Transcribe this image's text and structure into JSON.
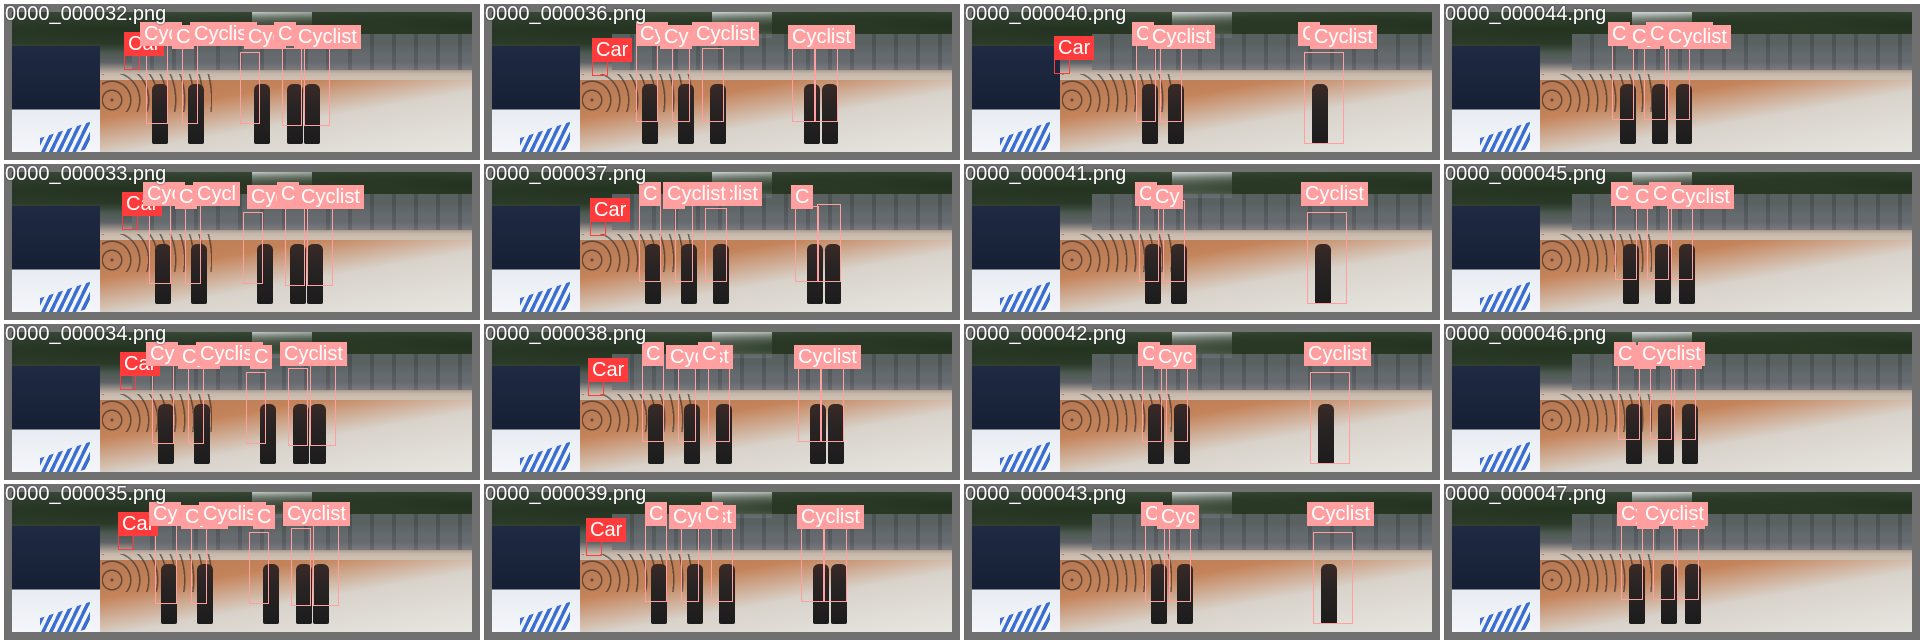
{
  "grid": {
    "rows": 4,
    "cols": 4,
    "tiles": [
      {
        "file": "0000_000032.png",
        "car": "Car",
        "labels": [
          "Cyc",
          "C",
          "Cyclist",
          "Cyc",
          "C",
          "Cyclist"
        ]
      },
      {
        "file": "0000_000036.png",
        "car": "Car",
        "labels": [
          "Cy",
          "Cy",
          "Cyclist",
          "Cyclist"
        ]
      },
      {
        "file": "0000_000040.png",
        "car": "Car",
        "labels": [
          "C",
          "Cyclist",
          "C",
          "Cyclist"
        ]
      },
      {
        "file": "0000_000044.png",
        "car": "",
        "labels": [
          "C",
          "Cy",
          "Cyclist",
          "Cyclist"
        ]
      },
      {
        "file": "0000_000033.png",
        "car": "Car",
        "labels": [
          "Cyc",
          "C",
          "Cycl",
          "Cycli",
          "C",
          "Cyclist"
        ]
      },
      {
        "file": "0000_000037.png",
        "car": "Car",
        "labels": [
          "C",
          "C",
          "Cyclist",
          "C",
          "Cyclist"
        ]
      },
      {
        "file": "0000_000041.png",
        "car": "",
        "labels": [
          "C",
          "Cy",
          "Cyclist"
        ]
      },
      {
        "file": "0000_000045.png",
        "car": "",
        "labels": [
          "C",
          "C",
          "Cy",
          "Cyclist"
        ]
      },
      {
        "file": "0000_000034.png",
        "car": "Car",
        "labels": [
          "Cy",
          "Cyc",
          "Cyclist",
          "C",
          "Cyclist"
        ]
      },
      {
        "file": "0000_000038.png",
        "car": "Car",
        "labels": [
          "C",
          "Cyclist",
          "C",
          "Cyclist"
        ]
      },
      {
        "file": "0000_000042.png",
        "car": "",
        "labels": [
          "C",
          "Cyc",
          "Cyclist"
        ]
      },
      {
        "file": "0000_000046.png",
        "car": "",
        "labels": [
          "C",
          "C",
          "C",
          "Cy",
          "Cyclist"
        ]
      },
      {
        "file": "0000_000035.png",
        "car": "Car",
        "labels": [
          "Cy",
          "Cycl",
          "Cyclist",
          "C",
          "Cyclist"
        ]
      },
      {
        "file": "0000_000039.png",
        "car": "Car",
        "labels": [
          "C",
          "Cyclist",
          "C",
          "Cyclist"
        ]
      },
      {
        "file": "0000_000043.png",
        "car": "",
        "labels": [
          "C",
          "Cyc",
          "Cyclist"
        ]
      },
      {
        "file": "0000_000047.png",
        "car": "",
        "labels": [
          "Cy",
          "C",
          "C",
          "Cy",
          "Cyclist"
        ]
      }
    ]
  },
  "colors": {
    "frame": "#707070",
    "car_box": "#ff3b3b",
    "cyclist_box": "#ff9f9f",
    "label_text": "#ffffff"
  }
}
